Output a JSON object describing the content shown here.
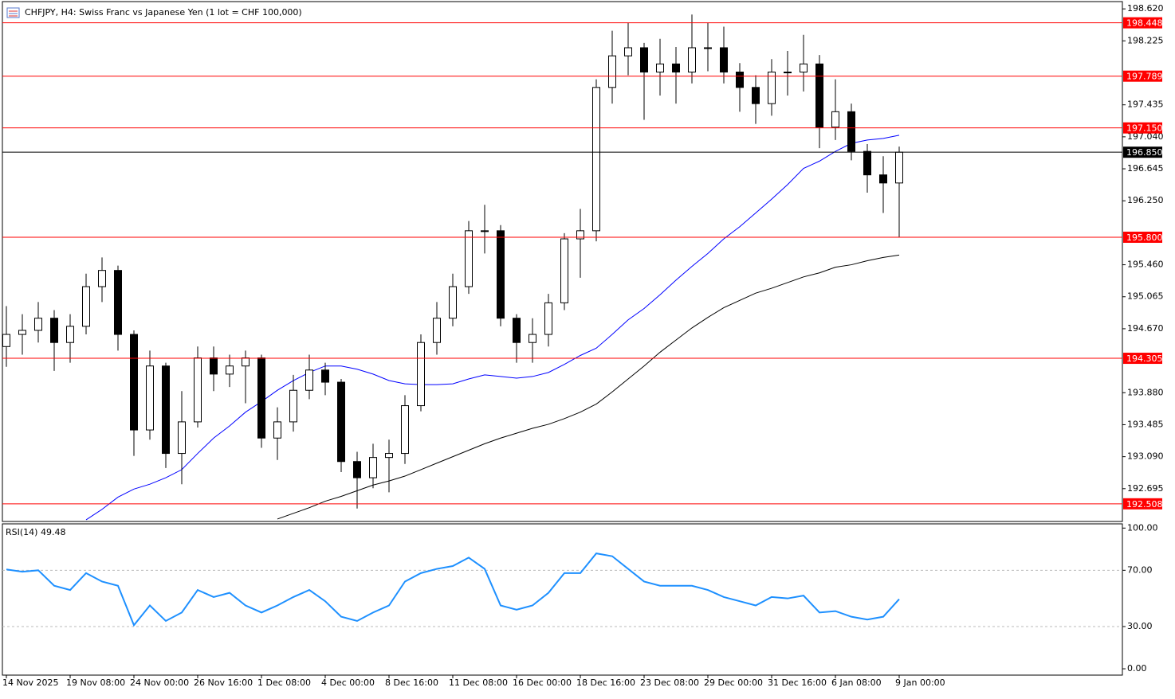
{
  "chart_data": [
    {
      "type": "candlestick",
      "title": "CHFJPY, H4:  Swiss Franc vs Japanese Yen (1 lot = CHF 100,000)",
      "open": [
        194.45,
        194.6,
        194.65,
        194.8,
        194.5,
        194.7,
        195.19,
        195.39,
        194.6,
        193.42,
        194.21,
        193.13,
        193.52,
        194.31,
        194.11,
        194.21,
        194.31,
        193.32,
        193.52,
        193.91,
        194.16,
        194.01,
        193.03,
        192.83,
        193.08,
        193.13,
        193.72,
        194.5,
        194.8,
        195.19,
        195.88,
        195.88,
        194.8,
        194.5,
        194.6,
        194.99,
        195.78,
        195.88,
        197.65,
        198.04,
        198.14,
        197.84,
        197.94,
        197.84,
        198.14,
        198.14,
        197.84,
        197.65,
        197.45,
        197.84,
        197.84,
        197.94,
        197.16,
        197.35,
        196.86,
        196.57,
        196.47
      ],
      "high": [
        194.95,
        194.85,
        195.0,
        194.9,
        194.85,
        195.35,
        195.55,
        195.45,
        194.65,
        194.4,
        194.25,
        193.9,
        194.45,
        194.45,
        194.35,
        194.4,
        194.35,
        193.7,
        194.1,
        194.35,
        194.25,
        194.05,
        193.15,
        193.25,
        193.3,
        193.85,
        194.6,
        195.0,
        195.35,
        196.0,
        196.2,
        195.95,
        194.85,
        194.8,
        195.1,
        195.85,
        196.15,
        197.75,
        198.35,
        198.45,
        198.2,
        198.25,
        198.15,
        198.55,
        198.45,
        198.4,
        197.95,
        197.8,
        198.0,
        198.1,
        198.3,
        198.05,
        197.75,
        197.45,
        196.95,
        196.8,
        196.92
      ],
      "low": [
        194.2,
        194.35,
        194.5,
        194.15,
        194.25,
        194.6,
        195.0,
        194.4,
        193.1,
        193.3,
        192.95,
        192.75,
        193.45,
        193.9,
        193.95,
        193.75,
        193.2,
        193.05,
        193.4,
        193.8,
        193.85,
        192.9,
        192.45,
        192.7,
        192.65,
        193.0,
        193.65,
        194.35,
        194.7,
        195.1,
        195.6,
        194.7,
        194.25,
        194.25,
        194.45,
        194.9,
        195.3,
        195.75,
        197.45,
        197.8,
        197.25,
        197.55,
        197.45,
        197.7,
        197.85,
        197.7,
        197.35,
        197.2,
        197.3,
        197.55,
        197.6,
        196.9,
        197.0,
        196.75,
        196.35,
        196.1,
        195.8
      ],
      "close": [
        194.6,
        194.65,
        194.8,
        194.5,
        194.7,
        195.19,
        195.39,
        194.6,
        193.42,
        194.21,
        193.13,
        193.52,
        194.31,
        194.11,
        194.21,
        194.31,
        193.32,
        193.52,
        193.91,
        194.16,
        194.01,
        193.03,
        192.83,
        193.08,
        193.13,
        193.72,
        194.5,
        194.8,
        195.19,
        195.88,
        195.88,
        194.8,
        194.5,
        194.6,
        194.99,
        195.78,
        195.88,
        197.65,
        198.04,
        198.14,
        197.84,
        197.94,
        197.84,
        198.14,
        198.14,
        197.84,
        197.65,
        197.45,
        197.84,
        197.84,
        197.94,
        197.16,
        197.35,
        196.86,
        196.57,
        196.47,
        196.85
      ],
      "up_color": "#ffffff",
      "down_color": "#000000",
      "lines": [
        {
          "color": "#0000ff",
          "values": [
            null,
            null,
            null,
            null,
            null,
            192.31,
            192.44,
            192.59,
            192.69,
            192.75,
            192.83,
            192.93,
            193.13,
            193.32,
            193.47,
            193.64,
            193.77,
            193.91,
            194.03,
            194.13,
            194.21,
            194.21,
            194.17,
            194.11,
            194.03,
            193.99,
            193.98,
            193.98,
            193.99,
            194.05,
            194.1,
            194.08,
            194.06,
            194.08,
            194.13,
            194.23,
            194.34,
            194.43,
            194.6,
            194.78,
            194.92,
            195.09,
            195.27,
            195.44,
            195.6,
            195.78,
            195.93,
            196.1,
            196.27,
            196.45,
            196.65,
            196.74,
            196.86,
            196.96,
            197.0,
            197.02,
            197.06
          ]
        },
        {
          "color": "#000000",
          "values": [
            null,
            null,
            null,
            null,
            null,
            null,
            null,
            null,
            null,
            null,
            null,
            null,
            null,
            null,
            null,
            null,
            null,
            192.32,
            192.39,
            192.46,
            192.54,
            192.6,
            192.67,
            192.74,
            192.79,
            192.85,
            192.93,
            193.01,
            193.09,
            193.17,
            193.25,
            193.32,
            193.38,
            193.44,
            193.49,
            193.56,
            193.64,
            193.74,
            193.89,
            194.05,
            194.21,
            194.38,
            194.53,
            194.68,
            194.81,
            194.93,
            195.02,
            195.11,
            195.17,
            195.24,
            195.31,
            195.36,
            195.43,
            195.46,
            195.51,
            195.55,
            195.58
          ]
        }
      ],
      "levels": [
        198.448,
        197.789,
        {
          "value": 197.15,
          "label": "197.150"
        },
        {
          "value": 195.8,
          "label": "195.800"
        },
        194.305,
        192.508
      ],
      "level_color": "#ff0000",
      "current_price": {
        "value": 196.85,
        "label": "196.850"
      },
      "ylim": [
        192.29,
        198.71
      ],
      "yticks": [
        {
          "value": 198.62,
          "label": "198.620"
        },
        198.225,
        197.435,
        {
          "value": 197.04,
          "label": "197.040"
        },
        196.645,
        {
          "value": 196.25,
          "label": "196.250"
        },
        {
          "value": 195.46,
          "label": "195.460"
        },
        195.065,
        {
          "value": 194.67,
          "label": "194.670"
        },
        {
          "value": 193.88,
          "label": "193.880"
        },
        193.485,
        {
          "value": 193.09,
          "label": "193.090"
        },
        192.695
      ]
    },
    {
      "type": "line",
      "title": "RSI(14) 49.48",
      "color": "#1e90ff",
      "values": [
        70.6,
        69,
        70,
        59,
        56,
        68,
        62,
        59,
        31,
        45,
        34,
        40,
        56,
        51,
        54,
        45,
        40,
        45,
        51,
        56,
        48,
        37,
        34,
        40,
        45,
        62,
        68,
        71,
        73,
        79,
        71,
        45,
        42,
        45,
        54,
        68,
        68,
        82,
        80,
        71,
        62,
        59,
        59,
        59,
        56,
        51,
        48,
        45,
        51,
        50,
        52,
        40,
        41,
        37,
        35,
        37,
        49.48
      ],
      "categories": [
        "14 Nov 2025",
        null,
        null,
        null,
        "19 Nov 08:00",
        null,
        null,
        null,
        "24 Nov 00:00",
        null,
        null,
        null,
        "26 Nov 16:00",
        null,
        null,
        null,
        "1 Dec 08:00",
        null,
        null,
        null,
        "4 Dec 00:00",
        null,
        null,
        null,
        "8 Dec 16:00",
        null,
        null,
        null,
        "11 Dec 08:00",
        null,
        null,
        null,
        "16 Dec 00:00",
        null,
        null,
        null,
        "18 Dec 16:00",
        null,
        null,
        null,
        "23 Dec 08:00",
        null,
        null,
        null,
        "29 Dec 00:00",
        null,
        null,
        null,
        "31 Dec 16:00",
        null,
        null,
        null,
        "6 Jan 08:00",
        null,
        null,
        null,
        "9 Jan 00:00"
      ],
      "levels": [
        70,
        30
      ],
      "ylim": [
        -4.5,
        103
      ],
      "yticks": [
        {
          "value": 100,
          "label": "100.00"
        },
        {
          "value": 70,
          "label": "70.00"
        },
        {
          "value": 30,
          "label": "30.00"
        },
        {
          "value": 0,
          "label": "0.00"
        }
      ]
    }
  ]
}
